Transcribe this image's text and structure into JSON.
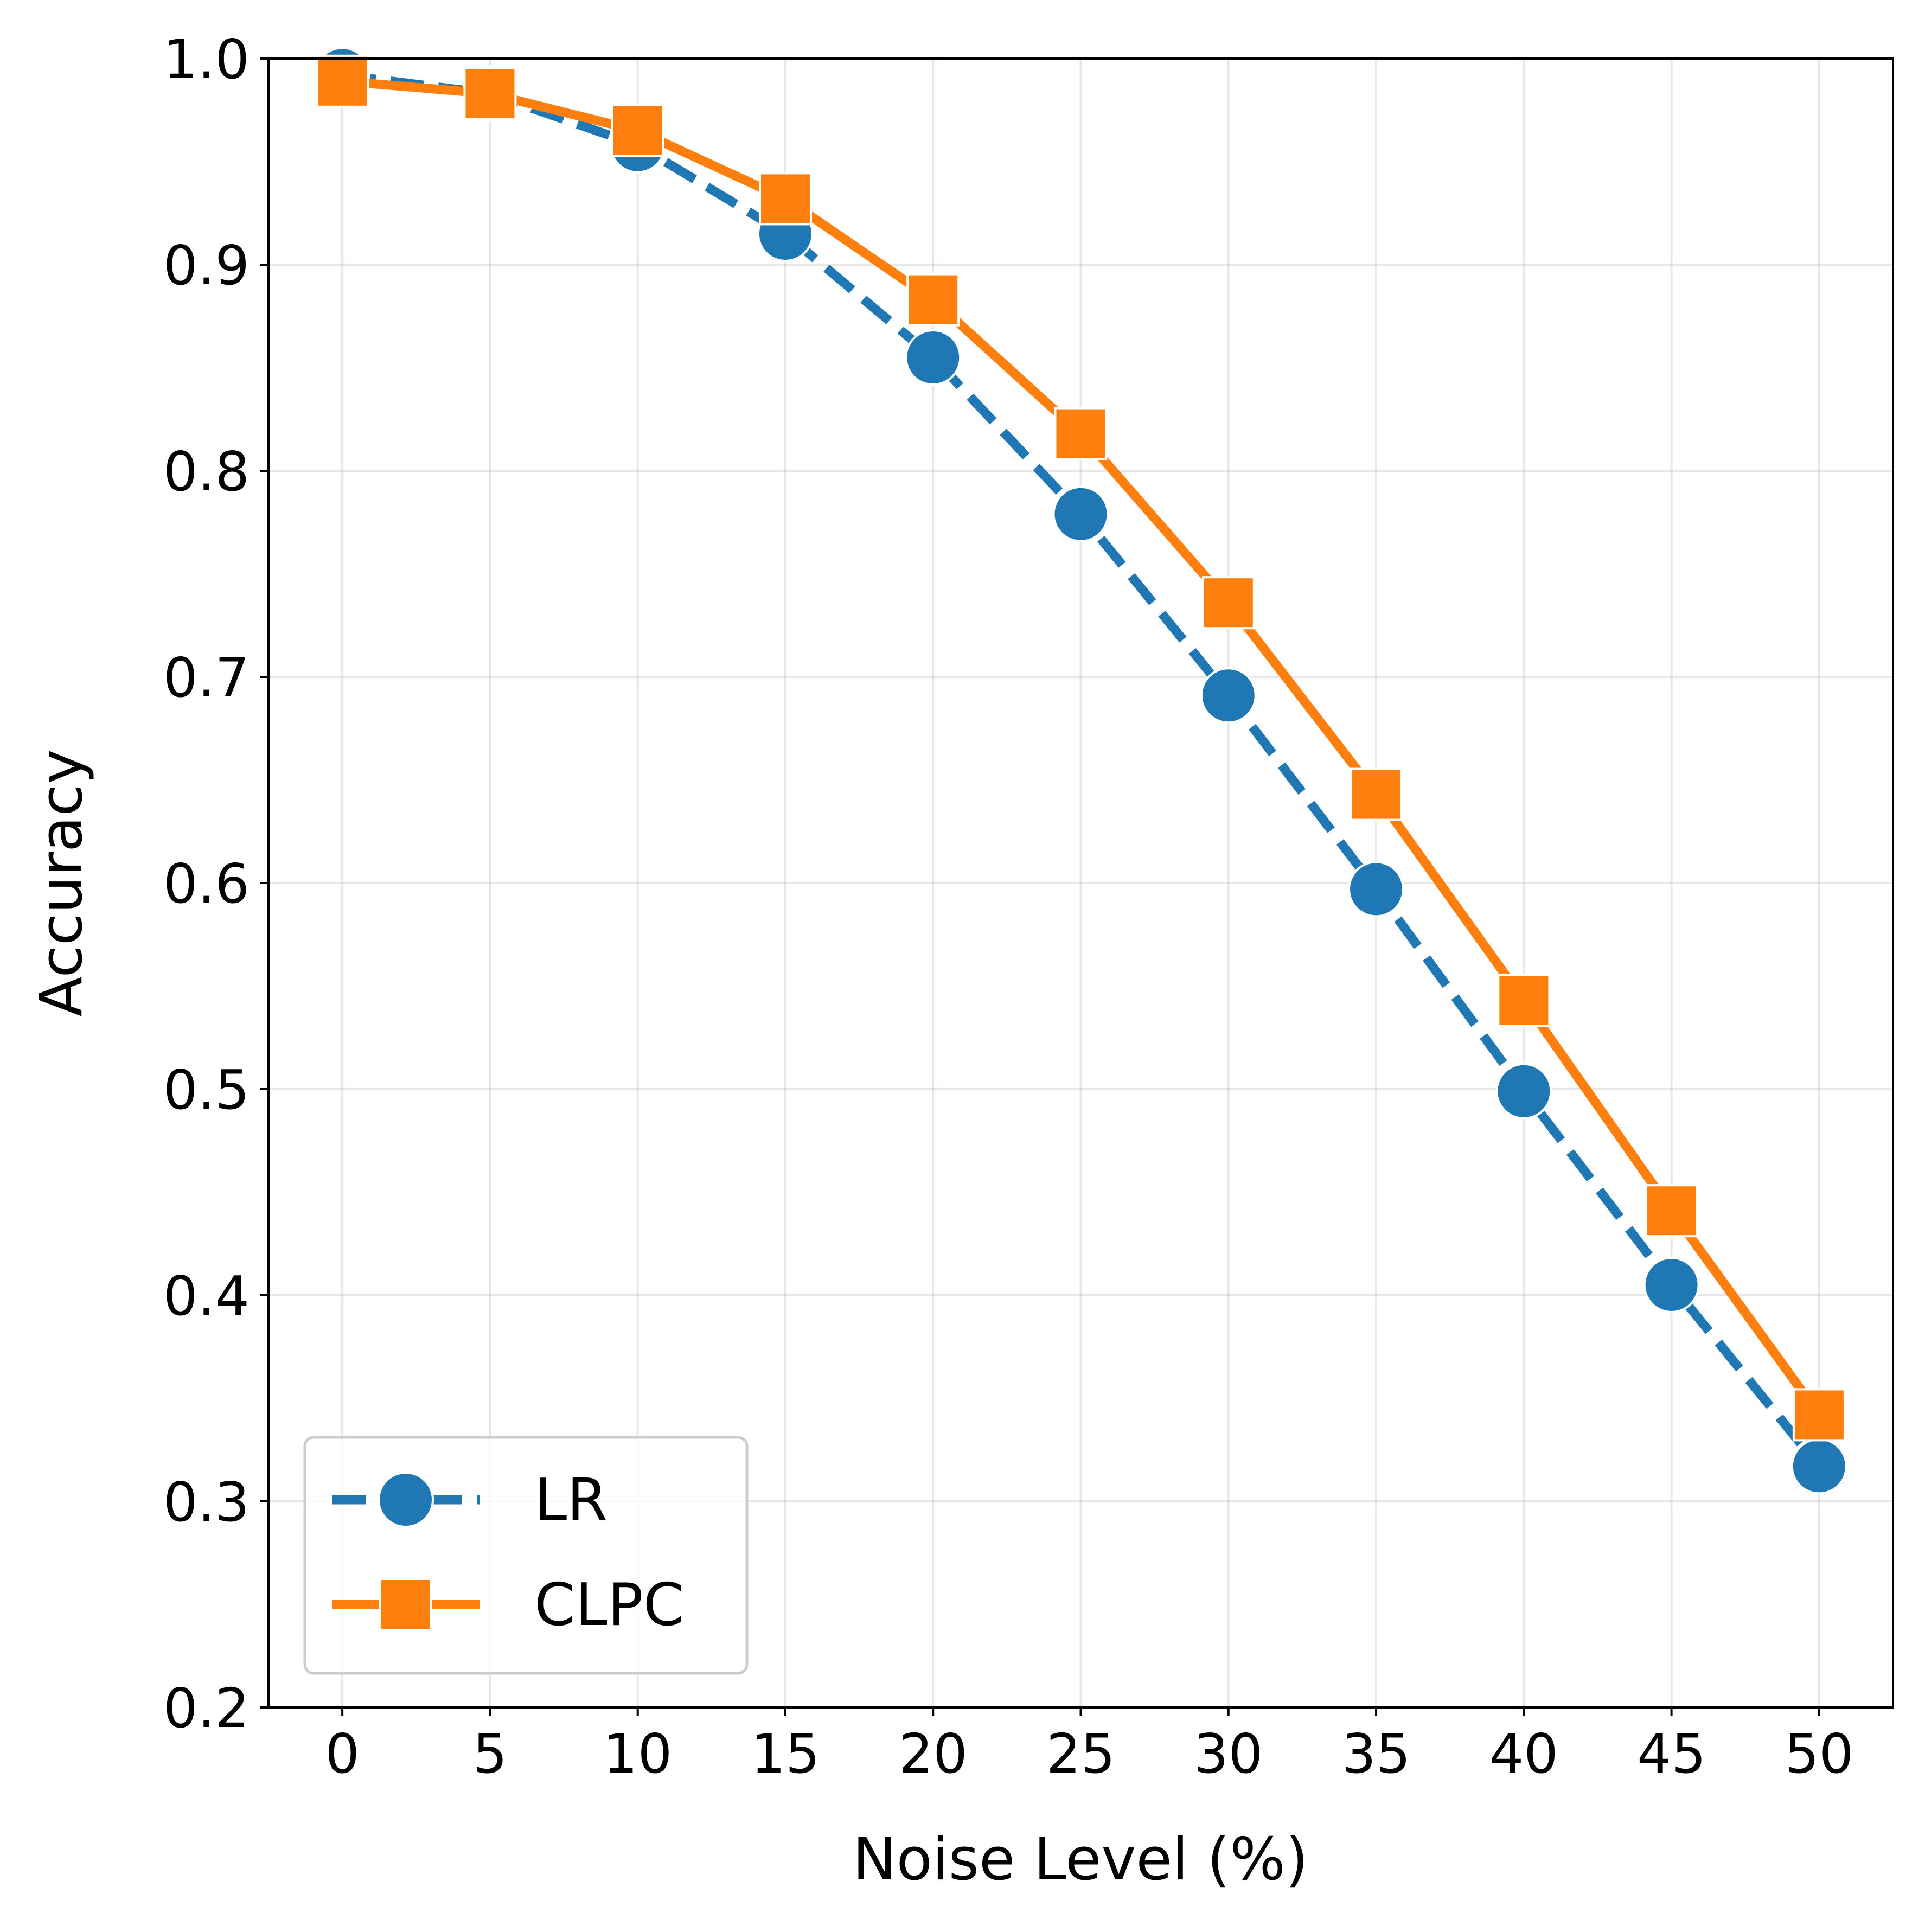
{
  "chart_data": {
    "type": "line",
    "title": "",
    "xlabel": "Noise Level (%)",
    "ylabel": "Accuracy",
    "x": [
      0,
      5,
      10,
      15,
      20,
      25,
      30,
      35,
      40,
      45,
      50
    ],
    "xticks": [
      "0",
      "5",
      "10",
      "15",
      "20",
      "25",
      "30",
      "35",
      "40",
      "45",
      "50"
    ],
    "yticks": [
      "0.2",
      "0.3",
      "0.4",
      "0.5",
      "0.6",
      "0.7",
      "0.8",
      "0.9",
      "1.0"
    ],
    "xlim": [
      -2.5,
      52.5
    ],
    "ylim": [
      0.2,
      1.0
    ],
    "grid": true,
    "legend_position": "lower-left",
    "series": [
      {
        "name": "LR",
        "color": "#1f77b4",
        "linestyle": "dashed",
        "marker": "circle",
        "values": [
          0.992,
          0.983,
          0.958,
          0.915,
          0.855,
          0.779,
          0.691,
          0.597,
          0.499,
          0.405,
          0.317
        ]
      },
      {
        "name": "CLPC",
        "color": "#ff7f0e",
        "linestyle": "solid",
        "marker": "square",
        "values": [
          0.989,
          0.983,
          0.965,
          0.932,
          0.883,
          0.818,
          0.736,
          0.643,
          0.543,
          0.441,
          0.342
        ]
      }
    ]
  }
}
